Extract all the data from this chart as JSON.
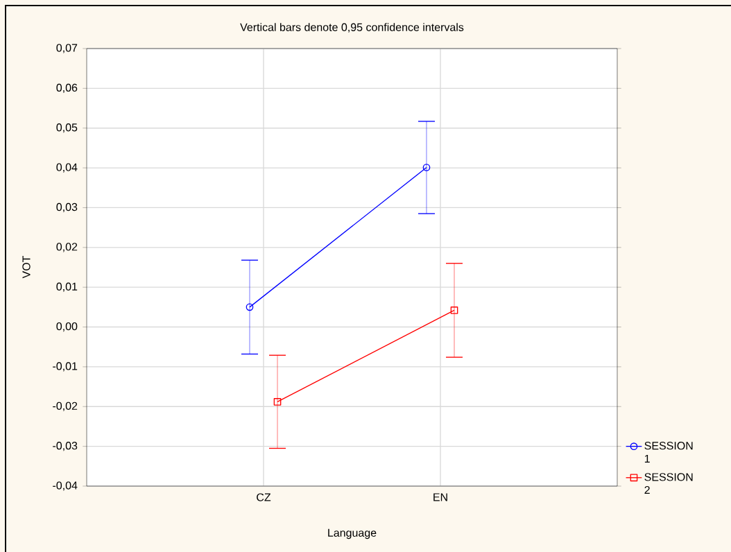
{
  "chart_data": {
    "type": "line",
    "title": "Vertical bars denote 0,95 confidence intervals",
    "xlabel": "Language",
    "ylabel": "VOT",
    "categories": [
      "CZ",
      "EN"
    ],
    "series": [
      {
        "name": "SESSION 1",
        "color": "#0000ff",
        "marker": "circle",
        "values": [
          0.005,
          0.0401
        ],
        "errors": [
          0.0118,
          0.0116
        ]
      },
      {
        "name": "SESSION 2",
        "color": "#ff0000",
        "marker": "square",
        "values": [
          -0.0188,
          0.0042
        ],
        "errors": [
          0.0117,
          0.0118
        ]
      }
    ],
    "ylim": [
      -0.04,
      0.07
    ],
    "yticks": [
      {
        "value": -0.04,
        "label": "-0,04"
      },
      {
        "value": -0.03,
        "label": "-0,03"
      },
      {
        "value": -0.02,
        "label": "-0,02"
      },
      {
        "value": -0.01,
        "label": "-0,01"
      },
      {
        "value": 0.0,
        "label": "0,00"
      },
      {
        "value": 0.01,
        "label": "0,01"
      },
      {
        "value": 0.02,
        "label": "0,02"
      },
      {
        "value": 0.03,
        "label": "0,03"
      },
      {
        "value": 0.04,
        "label": "0,04"
      },
      {
        "value": 0.05,
        "label": "0,05"
      },
      {
        "value": 0.06,
        "label": "0,06"
      },
      {
        "value": 0.07,
        "label": "0,07"
      }
    ],
    "grid": true,
    "legend": "bottom right",
    "line_style": "solid"
  }
}
